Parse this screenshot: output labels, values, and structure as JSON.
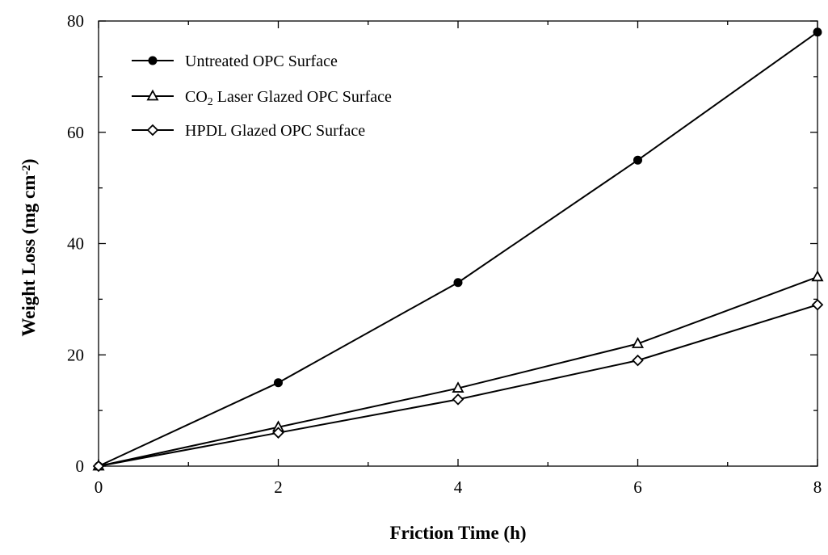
{
  "chart_data": {
    "type": "line",
    "xlabel": "Friction Time (h)",
    "ylabel": {
      "prefix": "Weight Loss (mg cm",
      "superscript": "-2",
      "suffix": ")"
    },
    "xlim": [
      0,
      8
    ],
    "ylim": [
      0,
      80
    ],
    "x_ticks": [
      0,
      2,
      4,
      6,
      8
    ],
    "x_tick_labels": [
      "0",
      "2",
      "4",
      "6",
      "8"
    ],
    "x_minor_ticks": [
      1,
      3,
      5,
      7
    ],
    "y_ticks": [
      0,
      20,
      40,
      60,
      80
    ],
    "y_tick_labels": [
      "0",
      "20",
      "40",
      "60",
      "80"
    ],
    "y_minor_ticks": [
      10,
      30,
      50,
      70
    ],
    "grid": false,
    "legend_position": "top-left",
    "x": [
      0,
      2,
      4,
      6,
      8
    ],
    "series": [
      {
        "name": "Untreated OPC Surface",
        "label_parts": [
          {
            "text": "Untreated OPC Surface"
          }
        ],
        "marker": "filled-circle",
        "values": [
          0,
          15,
          33,
          55,
          78
        ]
      },
      {
        "name": "CO2 Laser Glazed OPC Surface",
        "label_parts": [
          {
            "text": "CO"
          },
          {
            "text": "2",
            "sub": true
          },
          {
            "text": " Laser Glazed OPC Surface"
          }
        ],
        "marker": "open-triangle",
        "values": [
          0,
          7,
          14,
          22,
          34
        ]
      },
      {
        "name": "HPDL Glazed OPC Surface",
        "label_parts": [
          {
            "text": "HPDL Glazed OPC Surface"
          }
        ],
        "marker": "open-diamond",
        "values": [
          0,
          6,
          12,
          19,
          29
        ]
      }
    ]
  }
}
